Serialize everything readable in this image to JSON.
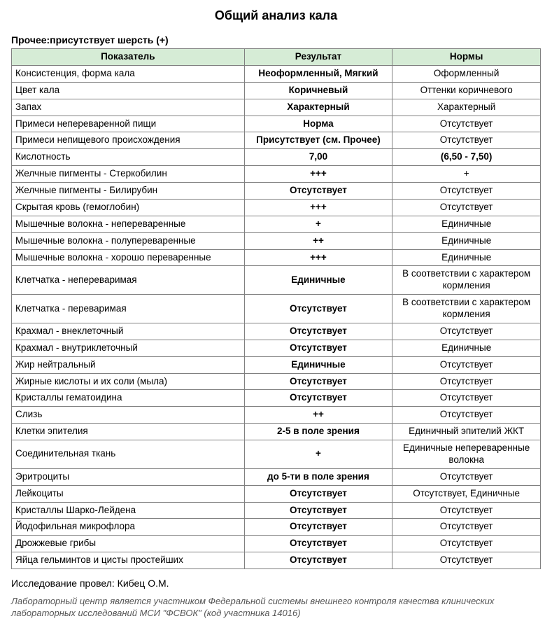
{
  "title": "Общий анализ кала",
  "note": "Прочее:присутствует шерсть (+)",
  "columns": [
    "Показатель",
    "Результат",
    "Нормы"
  ],
  "rows": [
    {
      "indicator": "Консистенция, форма кала",
      "result": "Неоформленный, Мягкий",
      "norm": "Оформленный"
    },
    {
      "indicator": "Цвет кала",
      "result": "Коричневый",
      "norm": "Оттенки коричневого"
    },
    {
      "indicator": "Запах",
      "result": "Характерный",
      "norm": "Характерный"
    },
    {
      "indicator": "Примеси непереваренной пищи",
      "result": "Норма",
      "norm": "Отсутствует"
    },
    {
      "indicator": "Примеси непищевого происхождения",
      "result": "Присутствует (см. Прочее)",
      "norm": "Отсутствует"
    },
    {
      "indicator": "Кислотность",
      "result": "7,00",
      "norm": "(6,50 - 7,50)"
    },
    {
      "indicator": "Желчные пигменты - Стеркобилин",
      "result": "+++",
      "norm": "+"
    },
    {
      "indicator": "Желчные пигменты - Билирубин",
      "result": "Отсутствует",
      "norm": "Отсутствует"
    },
    {
      "indicator": "Скрытая кровь (гемоглобин)",
      "result": "+++",
      "norm": "Отсутствует"
    },
    {
      "indicator": "Мышечные волокна - непереваренные",
      "result": "+",
      "norm": "Единичные"
    },
    {
      "indicator": "Мышечные волокна - полупереваренные",
      "result": "++",
      "norm": "Единичные"
    },
    {
      "indicator": "Мышечные волокна - хорошо переваренные",
      "result": "+++",
      "norm": "Единичные"
    },
    {
      "indicator": "Клетчатка - непереваримая",
      "result": "Единичные",
      "norm": "В соответствии с характером кормления"
    },
    {
      "indicator": "Клетчатка - переваримая",
      "result": "Отсутствует",
      "norm": "В соответствии с характером кормления"
    },
    {
      "indicator": "Крахмал - внеклеточный",
      "result": "Отсутствует",
      "norm": "Отсутствует"
    },
    {
      "indicator": "Крахмал - внутриклеточный",
      "result": "Отсутствует",
      "norm": "Единичные"
    },
    {
      "indicator": "Жир нейтральный",
      "result": "Единичные",
      "norm": "Отсутствует"
    },
    {
      "indicator": "Жирные кислоты и их соли (мыла)",
      "result": "Отсутствует",
      "norm": "Отсутствует"
    },
    {
      "indicator": "Кристаллы гематоидина",
      "result": "Отсутствует",
      "norm": "Отсутствует"
    },
    {
      "indicator": "Слизь",
      "result": "++",
      "norm": "Отсутствует"
    },
    {
      "indicator": "Клетки эпителия",
      "result": "2-5 в поле зрения",
      "norm": "Единичный эпителий ЖКТ"
    },
    {
      "indicator": "Соединительная ткань",
      "result": "+",
      "norm": "Единичные непереваренные волокна"
    },
    {
      "indicator": "Эритроциты",
      "result": "до 5-ти в поле зрения",
      "norm": "Отсутствует"
    },
    {
      "indicator": "Лейкоциты",
      "result": "Отсутствует",
      "norm": "Отсутствует, Единичные"
    },
    {
      "indicator": "Кристаллы Шарко-Лейдена",
      "result": "Отсутствует",
      "norm": "Отсутствует"
    },
    {
      "indicator": "Йодофильная микрофлора",
      "result": "Отсутствует",
      "norm": "Отсутствует"
    },
    {
      "indicator": "Дрожжевые грибы",
      "result": "Отсутствует",
      "norm": "Отсутствует"
    },
    {
      "indicator": "Яйца гельминтов и цисты простейших",
      "result": "Отсутствует",
      "norm": "Отсутствует"
    }
  ],
  "signature": "Исследование провел: Кибец О.М.",
  "footer": "Лабораторный центр является участником Федеральной системы внешнего контроля качества клинических лабораторных исследований МСИ \"ФСВОК\" (код участника 14016)",
  "styling": {
    "header_background": "#d6ecd6",
    "border_color": "#808080",
    "text_color": "#000000",
    "footer_color": "#555555",
    "page_background": "#ffffff",
    "title_fontsize": 18,
    "body_fontsize": 13.5,
    "note_fontsize": 14,
    "signature_fontsize": 14,
    "footer_fontsize": 13,
    "column_widths_pct": [
      44,
      28,
      28
    ],
    "result_font_weight": "bold",
    "norm_bold_row_index": 5
  }
}
